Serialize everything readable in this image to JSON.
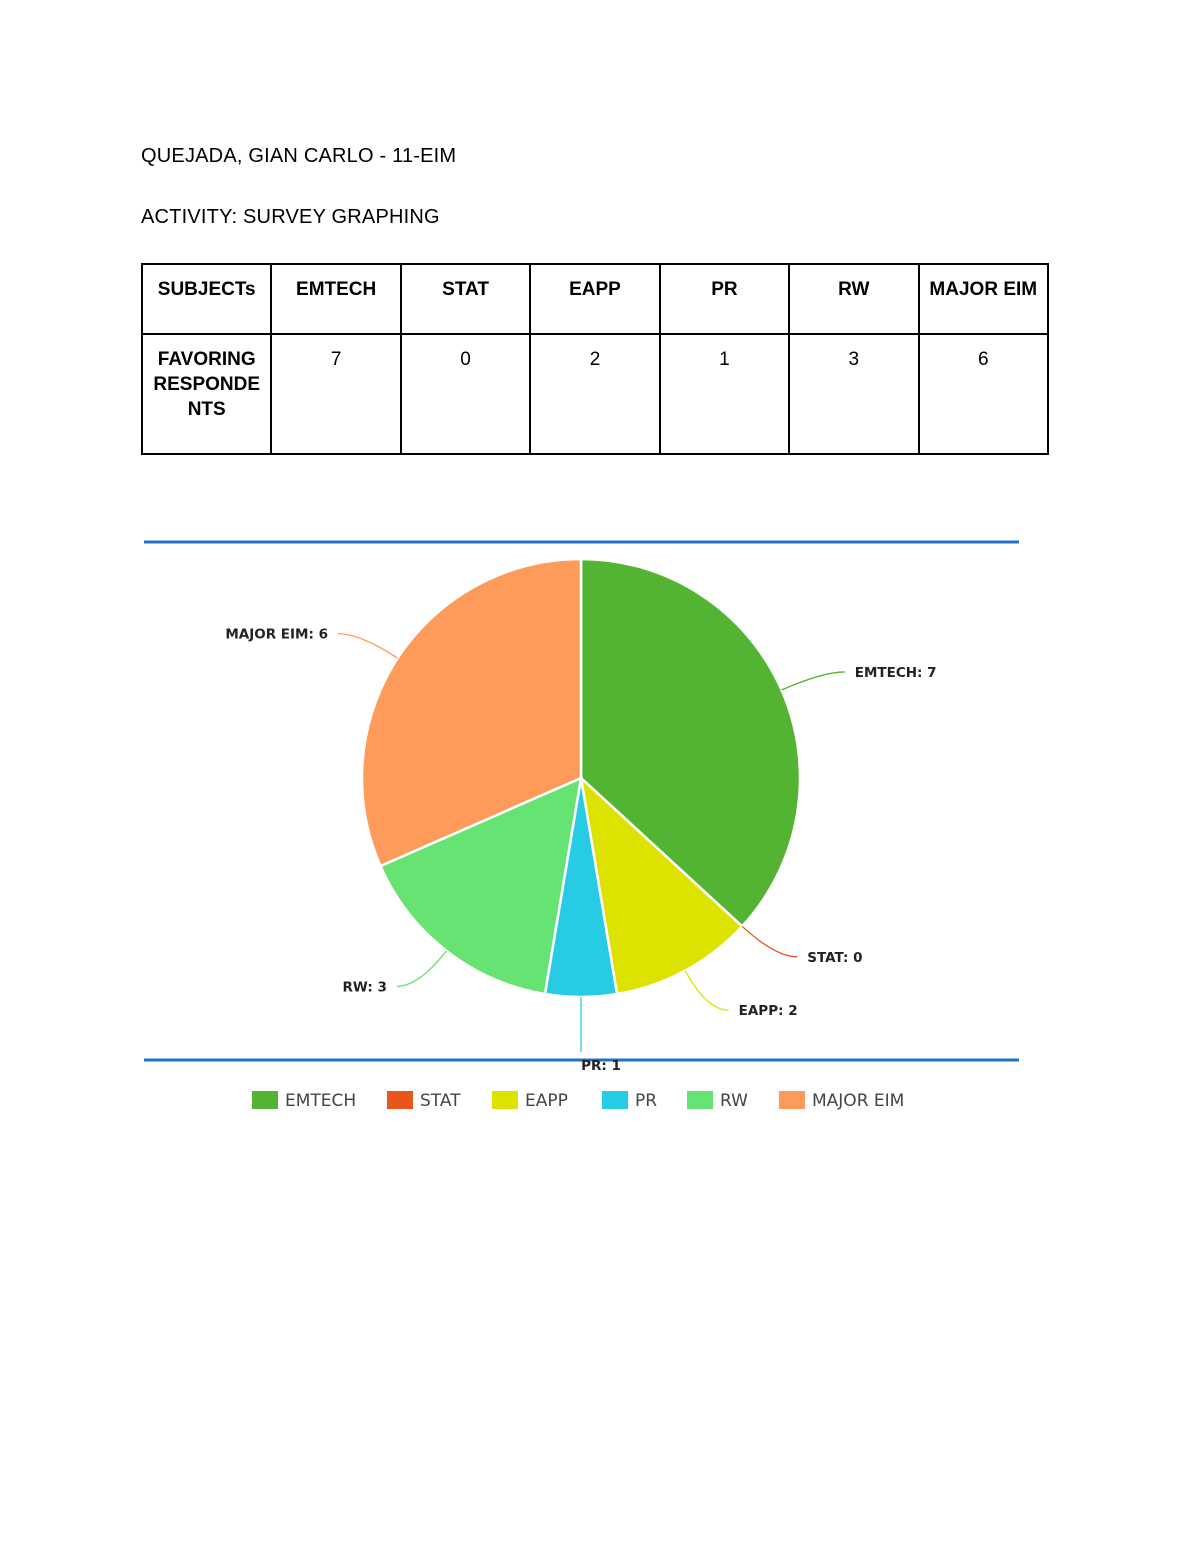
{
  "document": {
    "student": "QUEJADA, GIAN CARLO - 11-EIM",
    "activity": "ACTIVITY: SURVEY GRAPHING"
  },
  "table": {
    "headers": [
      "SUBJECTs",
      "EMTECH",
      "STAT",
      "EAPP",
      "PR",
      "RW",
      "MAJOR EIM"
    ],
    "row_label": "FAVORING RESPONDENTS",
    "values": [
      "7",
      "0",
      "2",
      "1",
      "3",
      "6"
    ]
  },
  "chart_data": {
    "type": "pie",
    "categories": [
      "EMTECH",
      "STAT",
      "EAPP",
      "PR",
      "RW",
      "MAJOR EIM"
    ],
    "values": [
      7,
      0,
      2,
      1,
      3,
      6
    ],
    "data_labels": [
      "EMTECH: 7",
      "STAT: 0",
      "EAPP: 2",
      "PR: 1",
      "RW: 3",
      "MAJOR EIM: 6"
    ],
    "colors": [
      "#52b432",
      "#e8561c",
      "#dce300",
      "#26cbe4",
      "#66e372",
      "#fe9a5a"
    ],
    "legend": {
      "position": "bottom",
      "entries": [
        "EMTECH",
        "STAT",
        "EAPP",
        "PR",
        "RW",
        "MAJOR EIM"
      ]
    },
    "rule_color": "#1f72c4"
  }
}
